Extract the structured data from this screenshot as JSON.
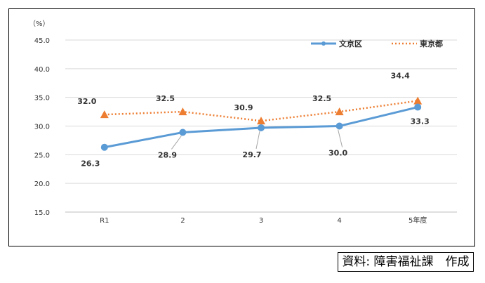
{
  "chart_data": {
    "type": "line",
    "title": "",
    "xlabel": "",
    "ylabel": "",
    "unit_label": "（%）",
    "categories": [
      "R1",
      "2",
      "3",
      "4",
      "5年度"
    ],
    "ylim": [
      15.0,
      45.0
    ],
    "yticks": [
      "45.0",
      "40.0",
      "35.0",
      "30.0",
      "25.0",
      "20.0",
      "15.0"
    ],
    "ytick_values": [
      45,
      40,
      35,
      30,
      25,
      20,
      15
    ],
    "grid": true,
    "legend_position": "top-right",
    "series": [
      {
        "name": "文京区",
        "values": [
          26.3,
          28.9,
          29.7,
          30.0,
          33.3
        ],
        "labels": [
          "26.3",
          "28.9",
          "29.7",
          "30.0",
          "33.3"
        ],
        "color": "#5B9BD5",
        "marker": "circle",
        "line_style": "solid"
      },
      {
        "name": "東京都",
        "values": [
          32.0,
          32.5,
          30.9,
          32.5,
          34.4
        ],
        "labels": [
          "32.0",
          "32.5",
          "30.9",
          "32.5",
          "34.4"
        ],
        "color": "#ED7D31",
        "marker": "triangle",
        "line_style": "dotted"
      }
    ]
  },
  "source_note": "資料: 障害福祉課　作成",
  "colors": {
    "grid": "#D9D9D9",
    "axis": "#BFBFBF",
    "leader": "#A6A6A6",
    "text": "#333333"
  }
}
